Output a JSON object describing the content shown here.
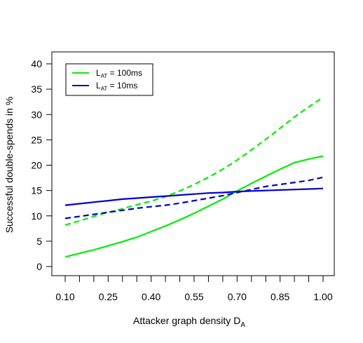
{
  "chart_data": {
    "type": "line",
    "title": "",
    "xlabel": "Attacker graph density D",
    "xlabel_subscript": "A",
    "ylabel": "Successful double-spends in %",
    "xlim": [
      0.1,
      1.0
    ],
    "ylim": [
      0,
      40
    ],
    "x_ticks": [
      0.1,
      0.25,
      0.4,
      0.55,
      0.7,
      0.85,
      1.0
    ],
    "x_tick_labels": [
      "0.10",
      "0.25",
      "0.40",
      "0.55",
      "0.70",
      "0.85",
      "1.00"
    ],
    "x_minor_ticks": [
      0.15,
      0.2,
      0.3,
      0.35,
      0.45,
      0.5,
      0.6,
      0.65,
      0.75,
      0.8,
      0.9,
      0.95
    ],
    "y_ticks": [
      0,
      5,
      10,
      15,
      20,
      25,
      30,
      35,
      40
    ],
    "y_tick_labels": [
      "0",
      "5",
      "10",
      "15",
      "20",
      "25",
      "30",
      "35",
      "40"
    ],
    "grid": false,
    "legend_position": "top-left",
    "legend": [
      {
        "prefix": "L",
        "subscript": "AT",
        "suffix": " = 100ms",
        "color": "#00ee00"
      },
      {
        "prefix": "L",
        "subscript": "AT",
        "suffix": " = 10ms",
        "color": "#0000cc"
      }
    ],
    "x": [
      0.1,
      0.15,
      0.2,
      0.25,
      0.3,
      0.35,
      0.4,
      0.45,
      0.5,
      0.55,
      0.6,
      0.65,
      0.7,
      0.75,
      0.8,
      0.85,
      0.9,
      0.95,
      1.0
    ],
    "series": [
      {
        "color": "#00ee00",
        "dash": "solid",
        "values": [
          1.9,
          2.6,
          3.3,
          4.1,
          4.9,
          5.8,
          6.9,
          8.0,
          9.2,
          10.5,
          11.9,
          13.3,
          14.9,
          16.4,
          17.8,
          19.2,
          20.5,
          21.2,
          21.8
        ]
      },
      {
        "color": "#00ee00",
        "dash": "dashed",
        "values": [
          8.2,
          9.0,
          9.9,
          10.7,
          11.4,
          12.2,
          12.9,
          13.8,
          14.9,
          16.2,
          17.6,
          19.2,
          21.0,
          23.0,
          25.1,
          27.3,
          29.5,
          31.5,
          33.4
        ]
      },
      {
        "color": "#0000cc",
        "dash": "solid",
        "values": [
          12.1,
          12.4,
          12.7,
          13.0,
          13.3,
          13.5,
          13.7,
          13.9,
          14.1,
          14.3,
          14.5,
          14.6,
          14.8,
          14.9,
          15.0,
          15.1,
          15.2,
          15.3,
          15.4
        ]
      },
      {
        "color": "#0000cc",
        "dash": "dashed",
        "values": [
          9.5,
          9.9,
          10.3,
          10.7,
          11.1,
          11.5,
          11.8,
          12.1,
          12.5,
          13.0,
          13.5,
          14.0,
          14.6,
          15.2,
          15.8,
          16.2,
          16.6,
          17.0,
          17.6
        ]
      }
    ]
  }
}
